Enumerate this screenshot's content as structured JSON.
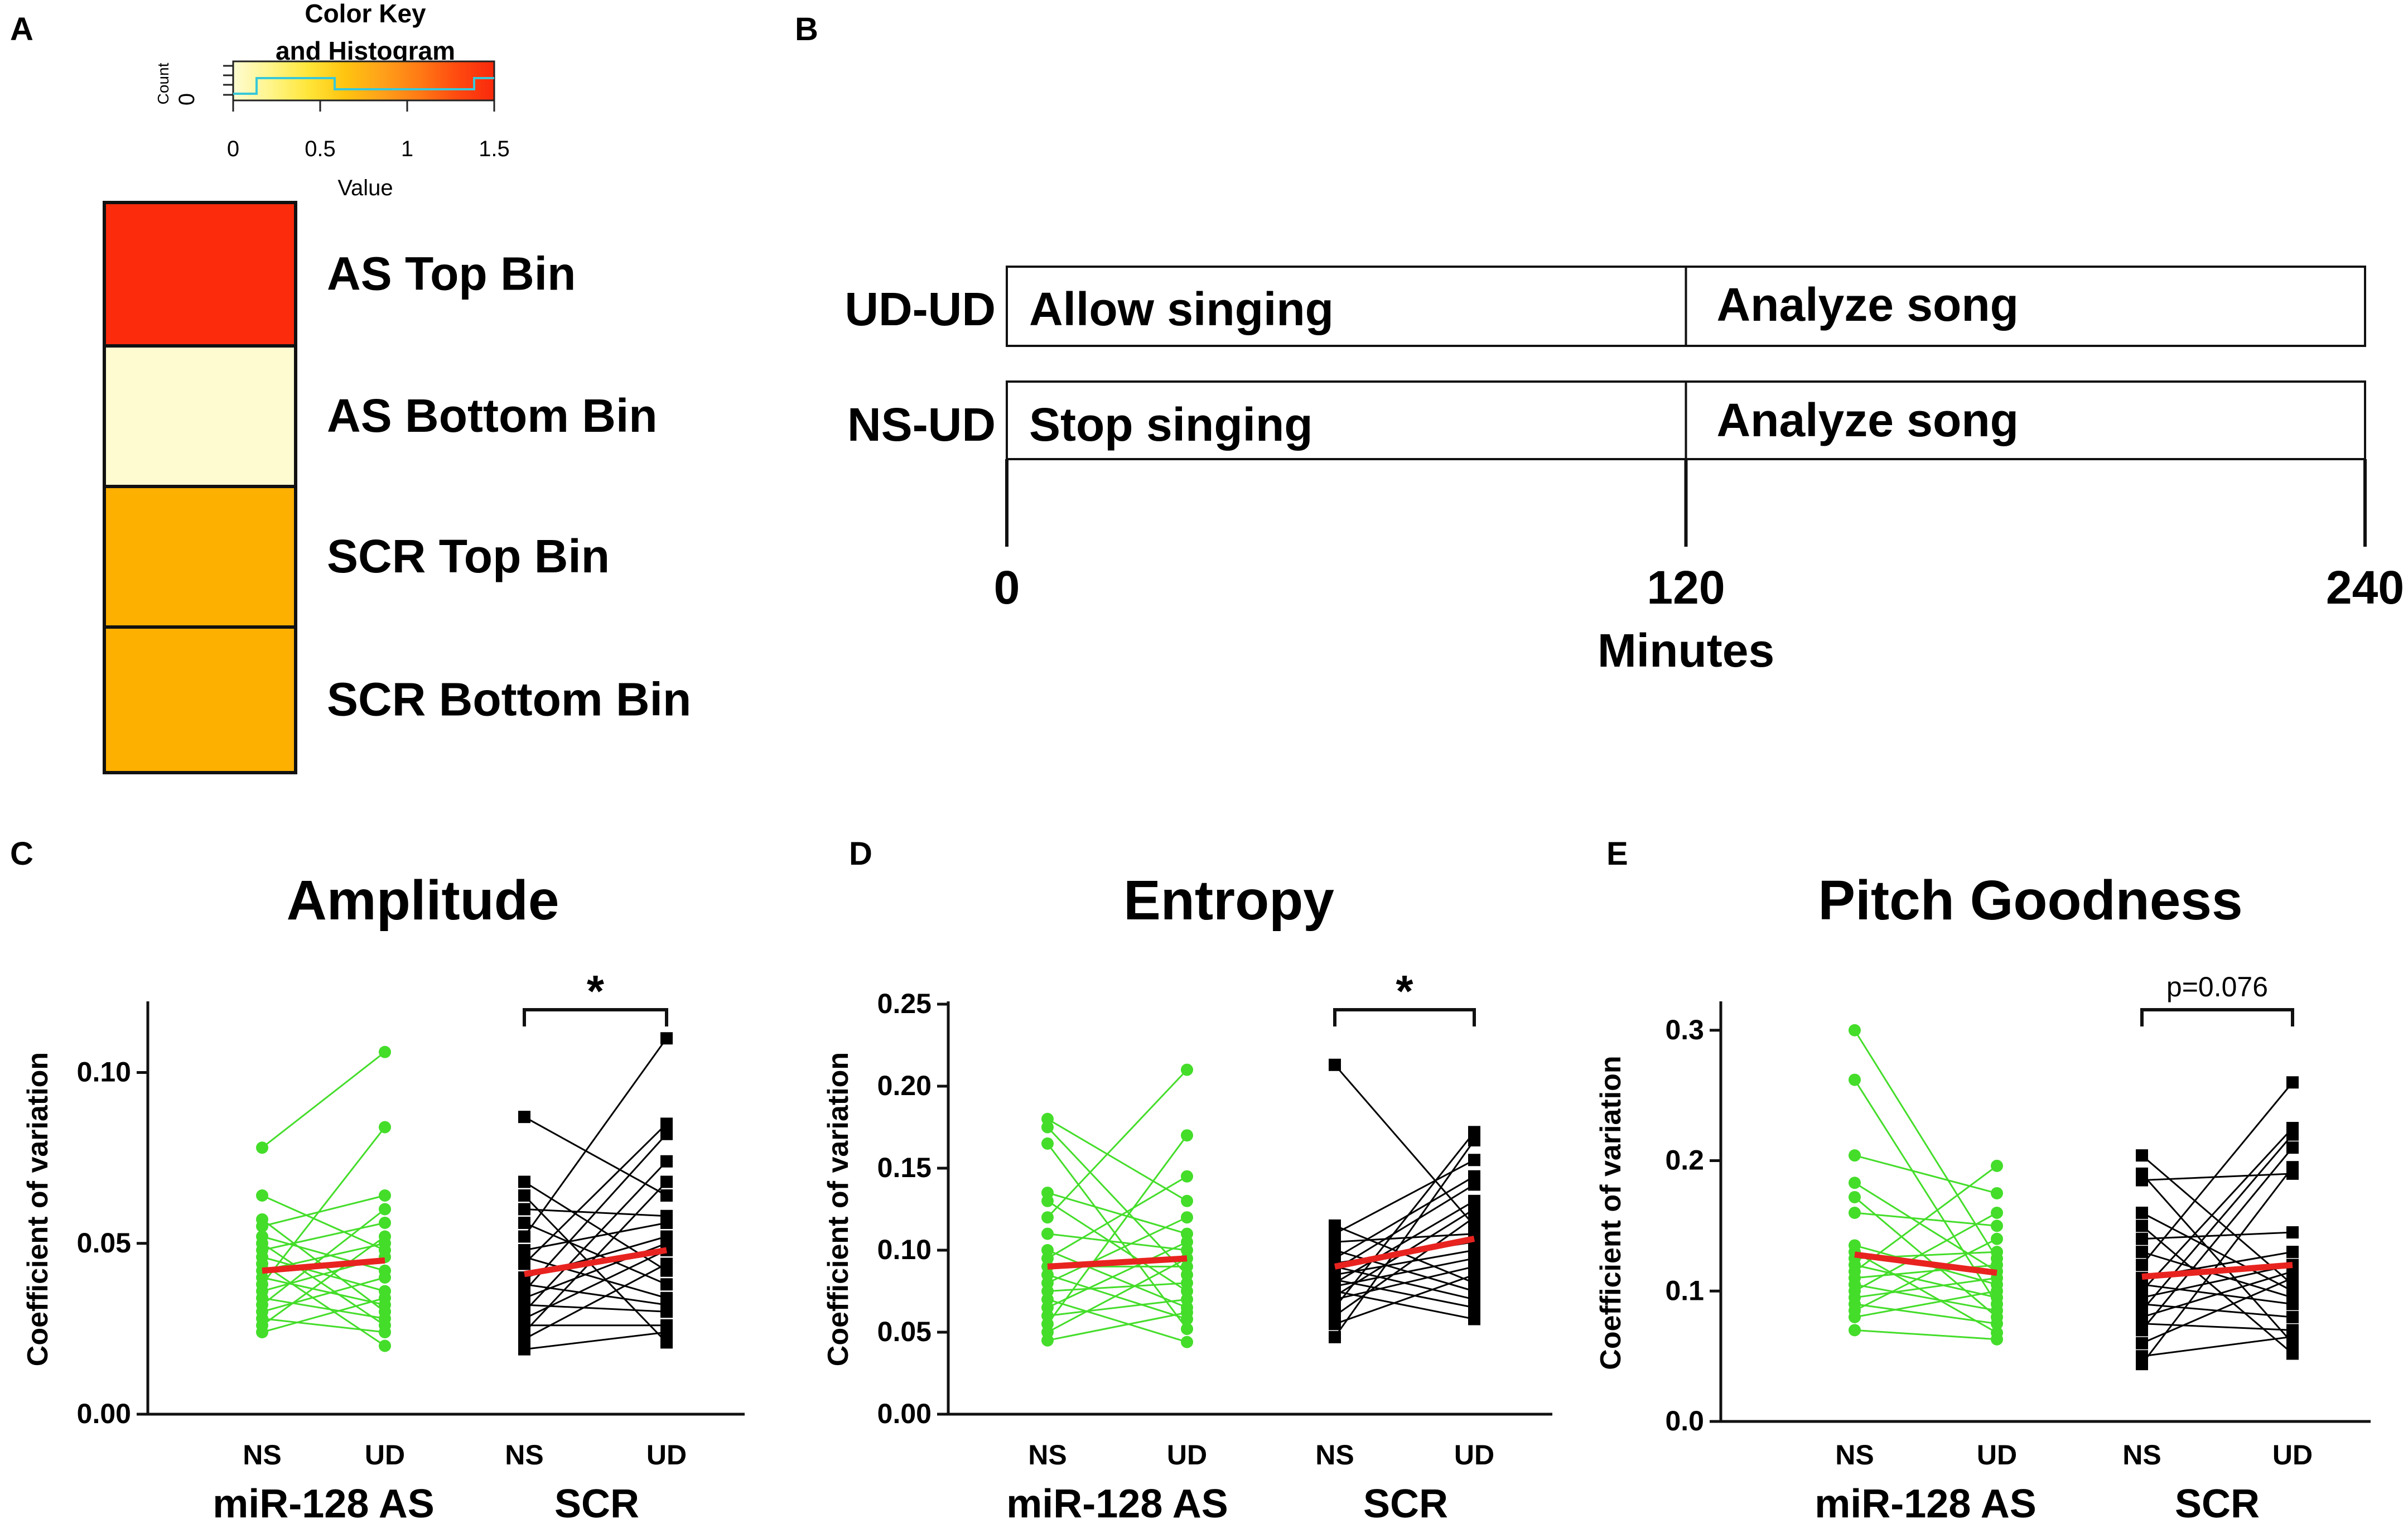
{
  "panels": {
    "a": {
      "letter": "A",
      "color_key": {
        "title_line1": "Color Key",
        "title_line2": "and Histogram",
        "count_label": "Count",
        "count_zero": "0",
        "xlabel": "Value",
        "ticks": [
          "0",
          "0.5",
          "1",
          "1.5"
        ],
        "range": [
          0,
          1.5
        ],
        "gradient": [
          "#fdfbd2",
          "#fff58a",
          "#ffe63a",
          "#ffc410",
          "#ffa11a",
          "#ff7a14",
          "#ff4a10",
          "#f9290c"
        ]
      },
      "heatmap": [
        {
          "label": "AS Top Bin",
          "color": "#fb2b0c"
        },
        {
          "label": "AS Bottom Bin",
          "color": "#fefbd0"
        },
        {
          "label": "SCR Top Bin",
          "color": "#fdb000"
        },
        {
          "label": "SCR Bottom Bin",
          "color": "#fdb000"
        }
      ]
    },
    "b": {
      "letter": "B",
      "rows": [
        {
          "label": "UD-UD",
          "first": "Allow singing",
          "second": "Analyze song"
        },
        {
          "label": "NS-UD",
          "first": "Stop singing",
          "second": "Analyze song"
        }
      ],
      "ticks": [
        0,
        120,
        240
      ],
      "xlabel": "Minutes"
    }
  },
  "colors": {
    "as_line": "#44dd2a",
    "scr_line": "#000000",
    "mean_line": "#e8231f"
  },
  "chart_data": [
    {
      "panel": "C",
      "type": "scatter",
      "title": "Amplitude",
      "ylabel": "Coefficient of variation",
      "ylim": [
        0,
        0.12
      ],
      "yticks": [
        0.0,
        0.05,
        0.1
      ],
      "ytick_labels": [
        "0.00",
        "0.05",
        "0.10"
      ],
      "x_tick_labels": [
        "NS",
        "UD",
        "NS",
        "UD"
      ],
      "groups": [
        "miR-128 AS",
        "SCR"
      ],
      "significance": "*",
      "series": [
        {
          "name": "miR-128 AS",
          "color": "#44dd2a",
          "marker": "circle",
          "ns": [
            0.078,
            0.064,
            0.057,
            0.055,
            0.052,
            0.05,
            0.048,
            0.046,
            0.044,
            0.042,
            0.04,
            0.038,
            0.036,
            0.034,
            0.032,
            0.03,
            0.028,
            0.026,
            0.024
          ],
          "ud": [
            0.106,
            0.084,
            0.064,
            0.06,
            0.056,
            0.052,
            0.05,
            0.048,
            0.046,
            0.042,
            0.04,
            0.036,
            0.034,
            0.032,
            0.03,
            0.028,
            0.026,
            0.024,
            0.02
          ],
          "mean": [
            0.042,
            0.045
          ]
        },
        {
          "name": "SCR",
          "color": "#000000",
          "marker": "square",
          "ns": [
            0.087,
            0.068,
            0.064,
            0.06,
            0.056,
            0.052,
            0.048,
            0.046,
            0.044,
            0.04,
            0.038,
            0.036,
            0.034,
            0.032,
            0.03,
            0.028,
            0.026,
            0.024,
            0.022,
            0.019
          ],
          "ud": [
            0.11,
            0.085,
            0.082,
            0.074,
            0.068,
            0.064,
            0.058,
            0.056,
            0.052,
            0.05,
            0.048,
            0.044,
            0.042,
            0.038,
            0.034,
            0.032,
            0.03,
            0.026,
            0.024,
            0.021
          ],
          "mean": [
            0.041,
            0.048
          ]
        }
      ]
    },
    {
      "panel": "D",
      "type": "scatter",
      "title": "Entropy",
      "ylabel": "Coefficient of variation",
      "ylim": [
        0,
        0.25
      ],
      "yticks": [
        0.0,
        0.05,
        0.1,
        0.15,
        0.2,
        0.25
      ],
      "ytick_labels": [
        "0.00",
        "0.05",
        "0.10",
        "0.15",
        "0.20",
        "0.25"
      ],
      "x_tick_labels": [
        "NS",
        "UD",
        "NS",
        "UD"
      ],
      "groups": [
        "miR-128 AS",
        "SCR"
      ],
      "significance": "*",
      "series": [
        {
          "name": "miR-128 AS",
          "color": "#44dd2a",
          "marker": "circle",
          "ns": [
            0.18,
            0.175,
            0.165,
            0.135,
            0.13,
            0.12,
            0.11,
            0.1,
            0.095,
            0.09,
            0.085,
            0.08,
            0.075,
            0.07,
            0.065,
            0.06,
            0.055,
            0.05,
            0.045
          ],
          "ud": [
            0.21,
            0.17,
            0.145,
            0.13,
            0.12,
            0.11,
            0.105,
            0.1,
            0.095,
            0.09,
            0.085,
            0.08,
            0.075,
            0.07,
            0.065,
            0.062,
            0.058,
            0.052,
            0.044
          ],
          "mean": [
            0.09,
            0.095
          ]
        },
        {
          "name": "SCR",
          "color": "#000000",
          "marker": "square",
          "ns": [
            0.213,
            0.115,
            0.11,
            0.105,
            0.1,
            0.095,
            0.092,
            0.09,
            0.088,
            0.085,
            0.082,
            0.08,
            0.078,
            0.075,
            0.072,
            0.07,
            0.065,
            0.06,
            0.055,
            0.047
          ],
          "ud": [
            0.172,
            0.167,
            0.155,
            0.145,
            0.14,
            0.13,
            0.125,
            0.12,
            0.115,
            0.11,
            0.105,
            0.1,
            0.095,
            0.09,
            0.085,
            0.08,
            0.075,
            0.07,
            0.065,
            0.058
          ],
          "mean": [
            0.09,
            0.107
          ]
        }
      ]
    },
    {
      "panel": "E",
      "type": "scatter",
      "title": "Pitch Goodness",
      "ylabel": "Coefficient of variation",
      "ylim": [
        0,
        0.32
      ],
      "yticks": [
        0.0,
        0.1,
        0.2,
        0.3
      ],
      "ytick_labels": [
        "0.0",
        "0.1",
        "0.2",
        "0.3"
      ],
      "x_tick_labels": [
        "NS",
        "UD",
        "NS",
        "UD"
      ],
      "groups": [
        "miR-128 AS",
        "SCR"
      ],
      "significance": "p=0.076",
      "series": [
        {
          "name": "miR-128 AS",
          "color": "#44dd2a",
          "marker": "circle",
          "ns": [
            0.3,
            0.262,
            0.204,
            0.183,
            0.172,
            0.16,
            0.135,
            0.13,
            0.125,
            0.12,
            0.115,
            0.11,
            0.105,
            0.1,
            0.095,
            0.09,
            0.085,
            0.08,
            0.07
          ],
          "ud": [
            0.196,
            0.175,
            0.16,
            0.15,
            0.14,
            0.13,
            0.125,
            0.12,
            0.115,
            0.11,
            0.105,
            0.1,
            0.095,
            0.09,
            0.085,
            0.08,
            0.075,
            0.068,
            0.063
          ],
          "mean": [
            0.128,
            0.114
          ]
        },
        {
          "name": "SCR",
          "color": "#000000",
          "marker": "square",
          "ns": [
            0.204,
            0.19,
            0.185,
            0.16,
            0.15,
            0.14,
            0.13,
            0.12,
            0.11,
            0.105,
            0.1,
            0.095,
            0.09,
            0.085,
            0.08,
            0.075,
            0.07,
            0.06,
            0.05,
            0.044
          ],
          "ud": [
            0.26,
            0.225,
            0.22,
            0.21,
            0.195,
            0.19,
            0.145,
            0.13,
            0.12,
            0.115,
            0.11,
            0.105,
            0.1,
            0.095,
            0.09,
            0.08,
            0.07,
            0.065,
            0.06,
            0.052
          ],
          "mean": [
            0.111,
            0.12
          ]
        }
      ]
    }
  ]
}
